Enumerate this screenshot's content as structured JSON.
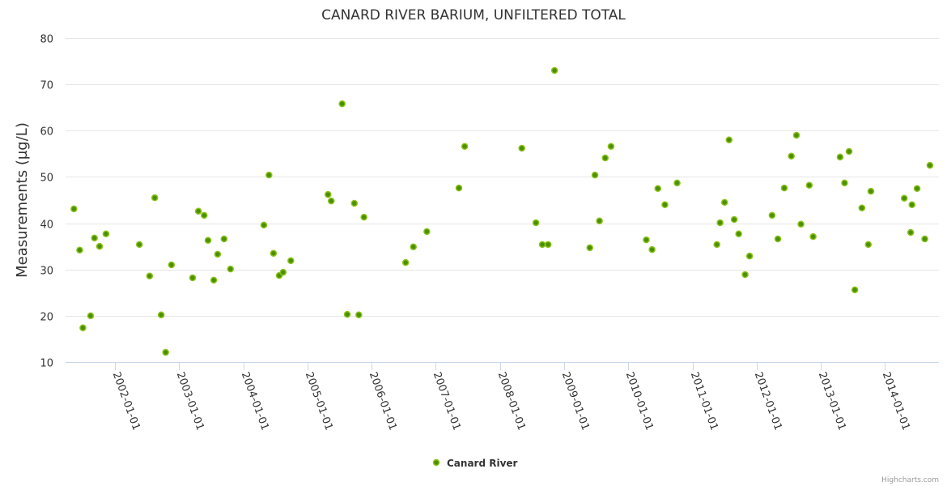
{
  "chart_data": {
    "type": "scatter",
    "title": "CANARD RIVER BARIUM, UNFILTERED TOTAL",
    "xlabel": "",
    "ylabel": "Measurements (µg/L)",
    "ylim": [
      10,
      80
    ],
    "yticks": [
      10,
      20,
      30,
      40,
      50,
      60,
      70,
      80
    ],
    "xlim": [
      2001.23,
      2014.84
    ],
    "xticks": [
      {
        "value": 2002,
        "label": "2002-01-01"
      },
      {
        "value": 2003,
        "label": "2003-01-01"
      },
      {
        "value": 2004,
        "label": "2004-01-01"
      },
      {
        "value": 2005,
        "label": "2005-01-01"
      },
      {
        "value": 2006,
        "label": "2006-01-01"
      },
      {
        "value": 2007,
        "label": "2007-01-01"
      },
      {
        "value": 2008,
        "label": "2008-01-01"
      },
      {
        "value": 2009,
        "label": "2009-01-01"
      },
      {
        "value": 2010,
        "label": "2010-01-01"
      },
      {
        "value": 2011,
        "label": "2011-01-01"
      },
      {
        "value": 2012,
        "label": "2012-01-01"
      },
      {
        "value": 2013,
        "label": "2013-01-01"
      },
      {
        "value": 2014,
        "label": "2014-01-01"
      }
    ],
    "grid": true,
    "legend_position": "bottom-center",
    "series": [
      {
        "name": "Canard River",
        "color": "#5a9e00",
        "points": [
          [
            2001.36,
            43.1
          ],
          [
            2001.45,
            34.2
          ],
          [
            2001.5,
            17.4
          ],
          [
            2001.62,
            20.0
          ],
          [
            2001.68,
            36.8
          ],
          [
            2001.76,
            35.0
          ],
          [
            2001.86,
            37.7
          ],
          [
            2002.38,
            35.4
          ],
          [
            2002.54,
            28.6
          ],
          [
            2002.62,
            45.5
          ],
          [
            2002.72,
            20.2
          ],
          [
            2002.79,
            12.1
          ],
          [
            2002.88,
            31.0
          ],
          [
            2003.21,
            28.2
          ],
          [
            2003.3,
            42.6
          ],
          [
            2003.39,
            41.7
          ],
          [
            2003.45,
            36.3
          ],
          [
            2003.54,
            27.7
          ],
          [
            2003.6,
            33.3
          ],
          [
            2003.7,
            36.6
          ],
          [
            2003.8,
            30.1
          ],
          [
            2004.32,
            39.6
          ],
          [
            2004.4,
            50.4
          ],
          [
            2004.47,
            33.5
          ],
          [
            2004.56,
            28.7
          ],
          [
            2004.62,
            29.4
          ],
          [
            2004.74,
            31.9
          ],
          [
            2005.32,
            46.2
          ],
          [
            2005.37,
            44.8
          ],
          [
            2005.54,
            65.8
          ],
          [
            2005.62,
            20.3
          ],
          [
            2005.73,
            44.3
          ],
          [
            2005.8,
            20.2
          ],
          [
            2005.88,
            41.3
          ],
          [
            2006.53,
            31.5
          ],
          [
            2006.65,
            34.9
          ],
          [
            2006.86,
            38.2
          ],
          [
            2007.36,
            47.6
          ],
          [
            2007.45,
            56.6
          ],
          [
            2008.34,
            56.2
          ],
          [
            2008.56,
            40.1
          ],
          [
            2008.66,
            35.4
          ],
          [
            2008.75,
            35.4
          ],
          [
            2008.85,
            73.0
          ],
          [
            2009.4,
            34.7
          ],
          [
            2009.48,
            50.4
          ],
          [
            2009.55,
            40.5
          ],
          [
            2009.64,
            54.1
          ],
          [
            2009.73,
            56.6
          ],
          [
            2010.28,
            36.4
          ],
          [
            2010.37,
            34.3
          ],
          [
            2010.46,
            47.5
          ],
          [
            2010.57,
            44.0
          ],
          [
            2010.76,
            48.7
          ],
          [
            2011.38,
            35.4
          ],
          [
            2011.43,
            40.1
          ],
          [
            2011.5,
            44.5
          ],
          [
            2011.57,
            58.0
          ],
          [
            2011.65,
            40.8
          ],
          [
            2011.72,
            37.7
          ],
          [
            2011.82,
            28.9
          ],
          [
            2011.89,
            32.9
          ],
          [
            2012.24,
            41.7
          ],
          [
            2012.33,
            36.6
          ],
          [
            2012.43,
            47.6
          ],
          [
            2012.54,
            54.5
          ],
          [
            2012.62,
            59.0
          ],
          [
            2012.69,
            39.8
          ],
          [
            2012.82,
            48.2
          ],
          [
            2012.88,
            37.1
          ],
          [
            2013.3,
            54.3
          ],
          [
            2013.37,
            48.7
          ],
          [
            2013.44,
            55.5
          ],
          [
            2013.53,
            25.6
          ],
          [
            2013.64,
            43.3
          ],
          [
            2013.74,
            35.4
          ],
          [
            2013.78,
            46.9
          ],
          [
            2014.3,
            45.4
          ],
          [
            2014.4,
            38.0
          ],
          [
            2014.42,
            44.0
          ],
          [
            2014.5,
            47.5
          ],
          [
            2014.62,
            36.6
          ],
          [
            2014.7,
            52.5
          ]
        ]
      }
    ]
  },
  "credits": "Highcharts.com"
}
